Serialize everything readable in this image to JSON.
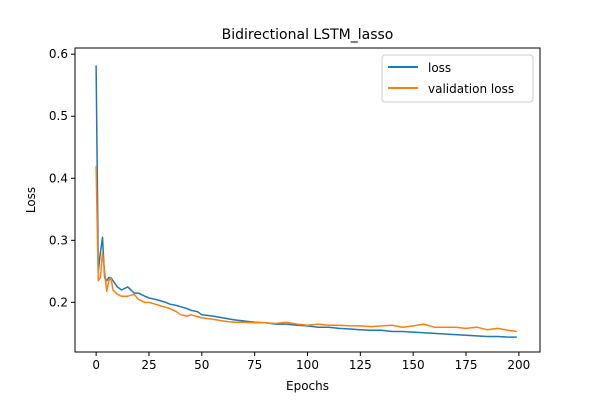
{
  "chart_data": {
    "type": "line",
    "title": "Bidirectional LSTM_lasso",
    "xlabel": "Epochs",
    "ylabel": "Loss",
    "xlim": [
      -10,
      210
    ],
    "ylim": [
      0.12,
      0.61
    ],
    "xticks": [
      0,
      25,
      50,
      75,
      100,
      125,
      150,
      175,
      200
    ],
    "yticks": [
      0.2,
      0.3,
      0.4,
      0.5,
      0.6
    ],
    "grid": false,
    "legend_position": "top-right",
    "series": [
      {
        "name": "loss",
        "color": "#1f77b4",
        "x": [
          0,
          1,
          2,
          3,
          4,
          5,
          6,
          7,
          8,
          10,
          12,
          15,
          18,
          20,
          23,
          25,
          28,
          30,
          33,
          35,
          38,
          40,
          43,
          45,
          48,
          50,
          55,
          60,
          65,
          70,
          75,
          80,
          85,
          90,
          95,
          100,
          105,
          110,
          115,
          120,
          125,
          130,
          135,
          140,
          145,
          150,
          155,
          160,
          165,
          170,
          175,
          180,
          185,
          190,
          195,
          199
        ],
        "values": [
          0.582,
          0.25,
          0.28,
          0.305,
          0.24,
          0.235,
          0.24,
          0.24,
          0.235,
          0.225,
          0.22,
          0.225,
          0.215,
          0.215,
          0.21,
          0.207,
          0.205,
          0.203,
          0.2,
          0.197,
          0.195,
          0.193,
          0.19,
          0.187,
          0.185,
          0.18,
          0.178,
          0.175,
          0.172,
          0.17,
          0.168,
          0.167,
          0.165,
          0.165,
          0.163,
          0.162,
          0.16,
          0.16,
          0.158,
          0.157,
          0.156,
          0.155,
          0.155,
          0.153,
          0.153,
          0.152,
          0.151,
          0.15,
          0.149,
          0.148,
          0.147,
          0.146,
          0.145,
          0.145,
          0.144,
          0.144
        ]
      },
      {
        "name": "validation loss",
        "color": "#ff7f0e",
        "x": [
          0,
          1,
          2,
          3,
          4,
          5,
          6,
          7,
          8,
          10,
          12,
          15,
          18,
          20,
          23,
          25,
          28,
          30,
          33,
          35,
          38,
          40,
          43,
          45,
          48,
          50,
          55,
          60,
          65,
          70,
          75,
          80,
          85,
          90,
          95,
          100,
          105,
          110,
          115,
          120,
          125,
          130,
          135,
          140,
          145,
          150,
          155,
          160,
          165,
          170,
          175,
          180,
          185,
          190,
          195,
          199
        ],
        "values": [
          0.42,
          0.235,
          0.24,
          0.28,
          0.25,
          0.218,
          0.235,
          0.24,
          0.22,
          0.213,
          0.21,
          0.21,
          0.213,
          0.205,
          0.2,
          0.2,
          0.197,
          0.195,
          0.192,
          0.19,
          0.185,
          0.18,
          0.178,
          0.18,
          0.177,
          0.175,
          0.173,
          0.17,
          0.168,
          0.168,
          0.167,
          0.167,
          0.166,
          0.168,
          0.165,
          0.163,
          0.165,
          0.163,
          0.163,
          0.162,
          0.162,
          0.161,
          0.162,
          0.163,
          0.16,
          0.162,
          0.165,
          0.16,
          0.16,
          0.16,
          0.158,
          0.16,
          0.156,
          0.158,
          0.155,
          0.153
        ]
      }
    ]
  }
}
